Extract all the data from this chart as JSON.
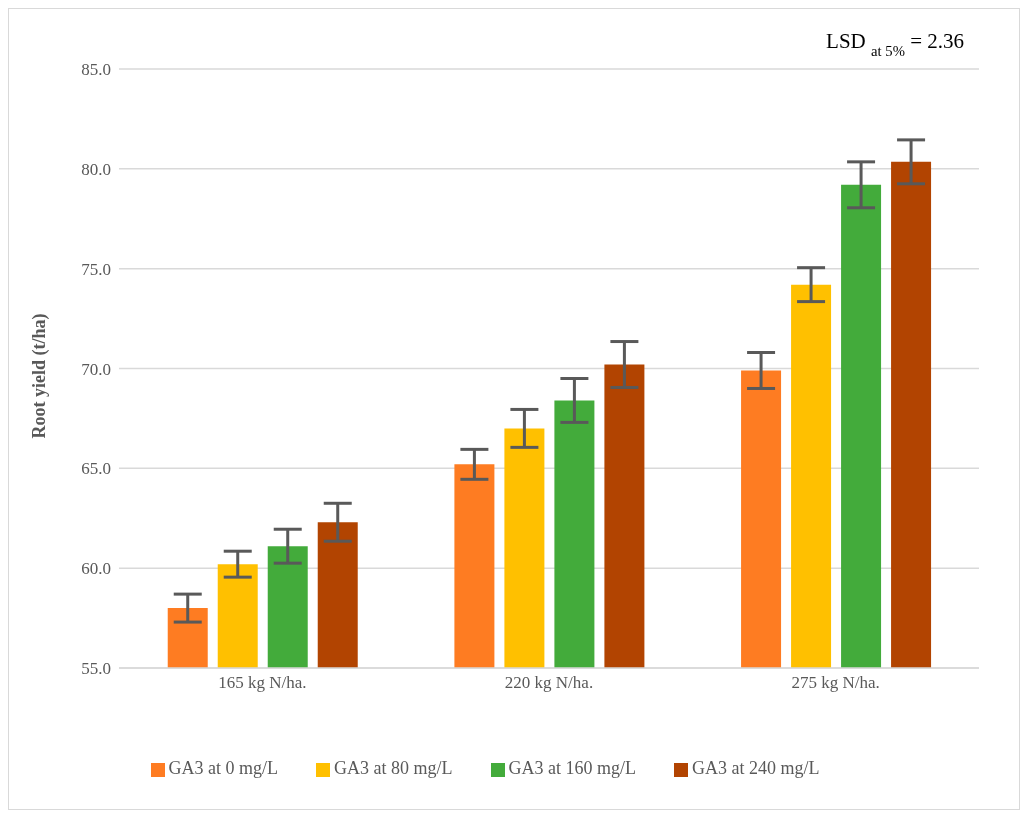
{
  "chart_data": {
    "type": "bar",
    "ylabel": "Root yield (t/ha)",
    "annotations": [
      "LSD $_{at 5%}$ = 2.36"
    ],
    "categories": [
      "165 kg N/ha.",
      "220 kg N/ha.",
      "275 kg N/ha."
    ],
    "series": [
      {
        "name": "GA3 at 0 mg/L",
        "color": "#fe7c22",
        "values": [
          58.0,
          65.2,
          69.9
        ],
        "errors": [
          0.7,
          0.75,
          0.9
        ]
      },
      {
        "name": "GA3 at 80 mg/L",
        "color": "#ffc000",
        "values": [
          60.2,
          67.0,
          74.2
        ],
        "errors": [
          0.65,
          0.95,
          0.85
        ]
      },
      {
        "name": "GA3 at 160 mg/L",
        "color": "#43ab3b",
        "values": [
          61.1,
          68.4,
          79.2
        ],
        "errors": [
          0.85,
          1.1,
          1.15
        ]
      },
      {
        "name": "GA3 at 240 mg/L",
        "color": "#b24401",
        "values": [
          62.3,
          70.2,
          80.35
        ],
        "errors": [
          0.95,
          1.15,
          1.1
        ]
      }
    ],
    "ylim": [
      55,
      85
    ],
    "yticks": [
      {
        "value": 55,
        "label": "55.0"
      },
      {
        "value": 60,
        "label": "60.0"
      },
      {
        "value": 65,
        "label": "65.0"
      },
      {
        "value": 70,
        "label": "70.0"
      },
      {
        "value": 75,
        "label": "75.0"
      },
      {
        "value": 80,
        "label": "80.0"
      },
      {
        "value": 85,
        "label": "85.0"
      }
    ],
    "grid": "y",
    "legend": "bottom"
  }
}
